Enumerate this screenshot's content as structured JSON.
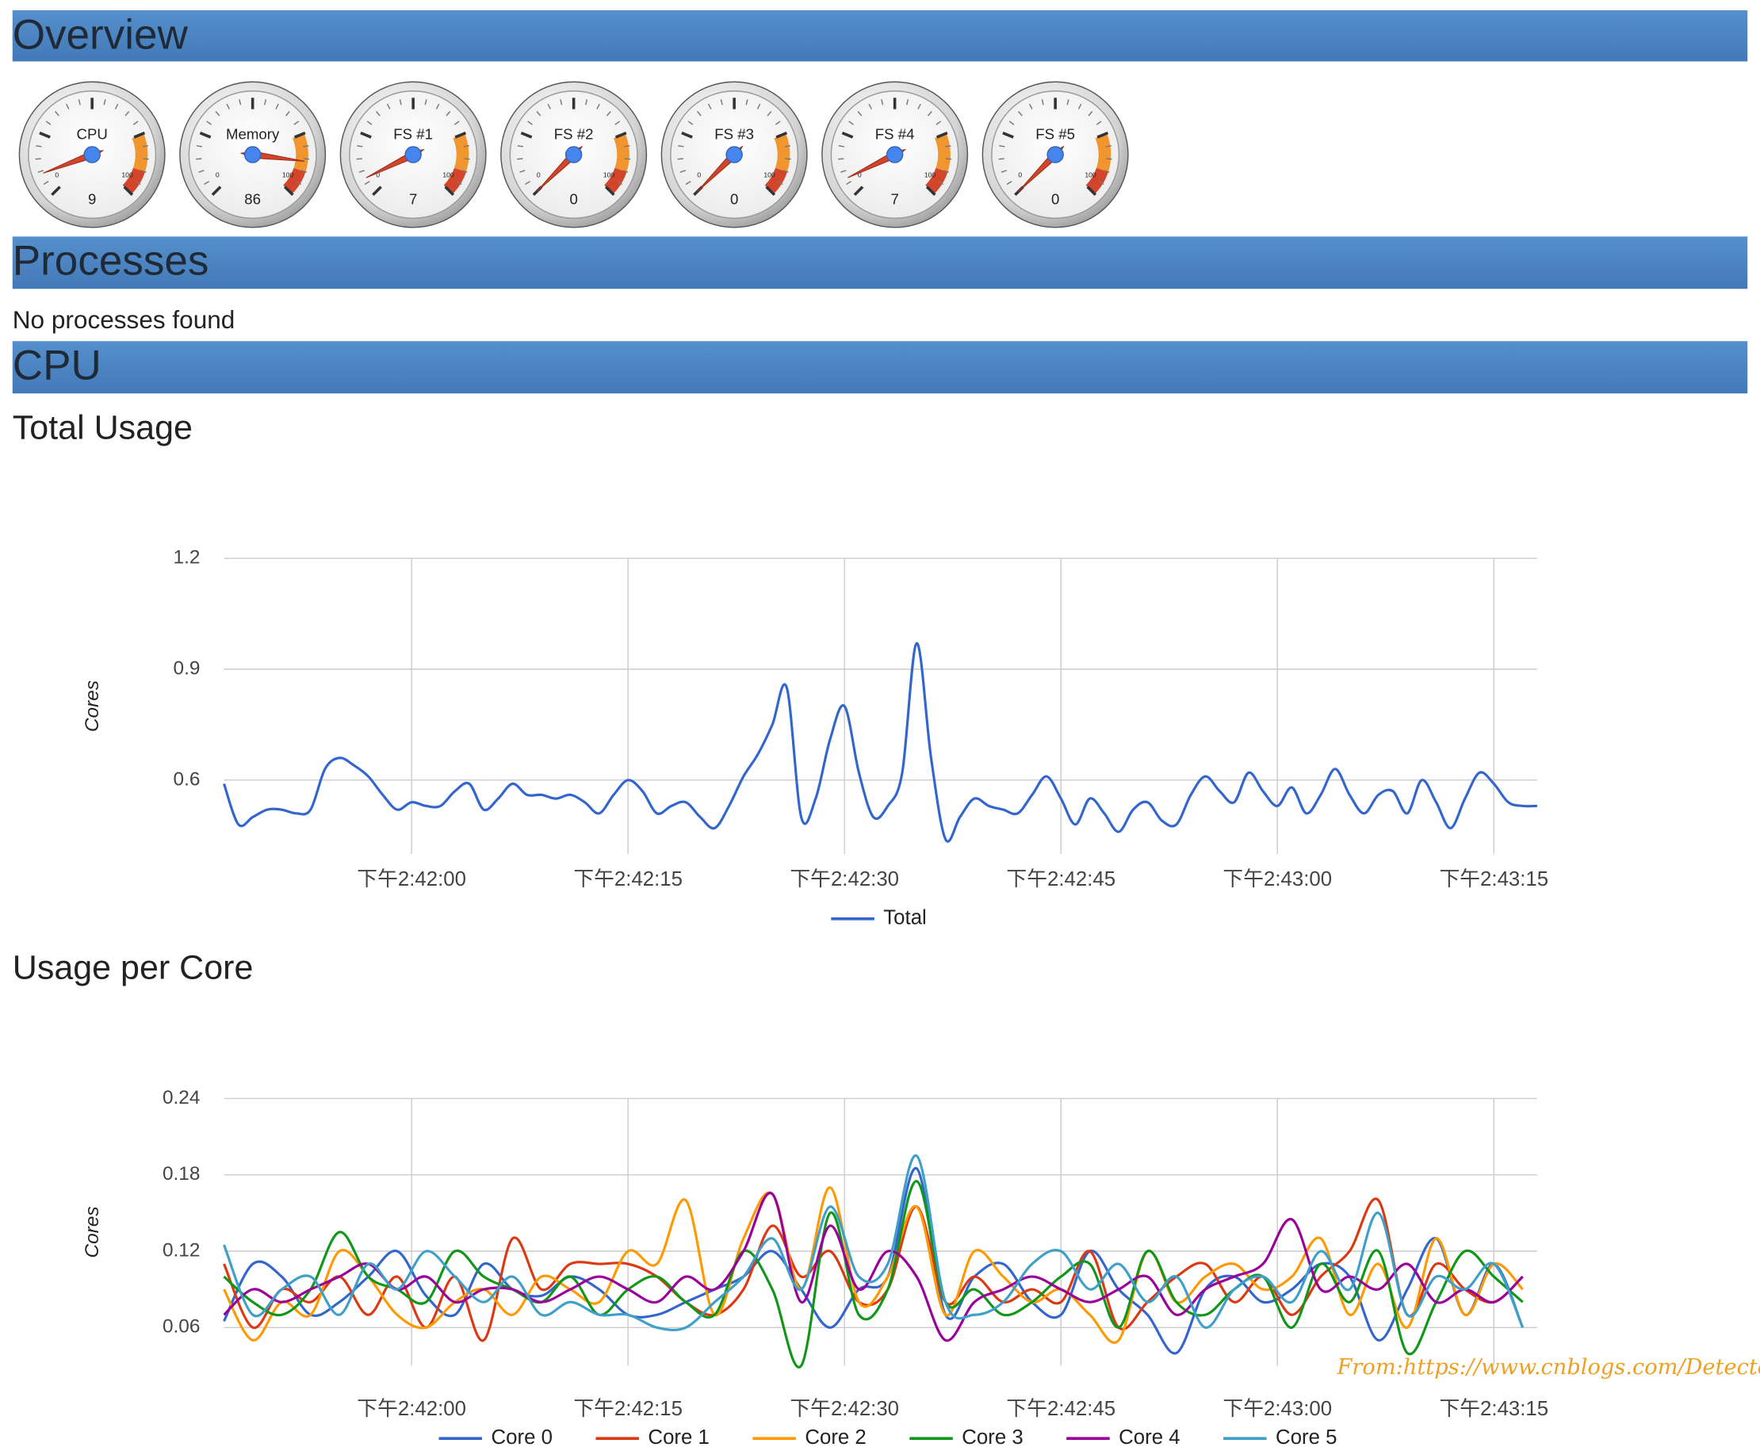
{
  "sections": {
    "overview": "Overview",
    "processes": "Processes",
    "cpu": "CPU"
  },
  "gauge_scale": {
    "min": 0,
    "max": 100
  },
  "gauge_bands": [
    {
      "from": 75,
      "to": 90,
      "color": "#f1962f"
    },
    {
      "from": 90,
      "to": 100,
      "color": "#d2452a"
    }
  ],
  "gauges": [
    {
      "label": "CPU",
      "value": 9
    },
    {
      "label": "Memory",
      "value": 86
    },
    {
      "label": "FS #1",
      "value": 7
    },
    {
      "label": "FS #2",
      "value": 0
    },
    {
      "label": "FS #3",
      "value": 0
    },
    {
      "label": "FS #4",
      "value": 7
    },
    {
      "label": "FS #5",
      "value": 0
    }
  ],
  "processes_text": "No processes found",
  "chart_data": [
    {
      "type": "line",
      "title": "Total Usage",
      "y_label": "Cores",
      "grid": true,
      "legend": "bottom",
      "x": [
        "14:41:47",
        "14:41:48",
        "14:41:49",
        "14:41:50",
        "14:41:51",
        "14:41:52",
        "14:41:53",
        "14:41:54",
        "14:41:55",
        "14:41:56",
        "14:41:57",
        "14:41:58",
        "14:41:59",
        "14:42:00",
        "14:42:01",
        "14:42:02",
        "14:42:03",
        "14:42:04",
        "14:42:05",
        "14:42:06",
        "14:42:07",
        "14:42:08",
        "14:42:09",
        "14:42:10",
        "14:42:11",
        "14:42:12",
        "14:42:13",
        "14:42:14",
        "14:42:15",
        "14:42:16",
        "14:42:17",
        "14:42:18",
        "14:42:19",
        "14:42:20",
        "14:42:21",
        "14:42:22",
        "14:42:23",
        "14:42:24",
        "14:42:25",
        "14:42:26",
        "14:42:27",
        "14:42:28",
        "14:42:29",
        "14:42:30",
        "14:42:31",
        "14:42:32",
        "14:42:33",
        "14:42:34",
        "14:42:35",
        "14:42:36",
        "14:42:37",
        "14:42:38",
        "14:42:39",
        "14:42:40",
        "14:42:41",
        "14:42:42",
        "14:42:43",
        "14:42:44",
        "14:42:45",
        "14:42:46",
        "14:42:47",
        "14:42:48",
        "14:42:49",
        "14:42:50",
        "14:42:51",
        "14:42:52",
        "14:42:53",
        "14:42:54",
        "14:42:55",
        "14:42:56",
        "14:42:57",
        "14:42:58",
        "14:42:59",
        "14:43:00",
        "14:43:01",
        "14:43:02",
        "14:43:03",
        "14:43:04",
        "14:43:05",
        "14:43:06",
        "14:43:07",
        "14:43:08",
        "14:43:09",
        "14:43:10",
        "14:43:11",
        "14:43:12",
        "14:43:13",
        "14:43:14",
        "14:43:15",
        "14:43:16",
        "14:43:17",
        "14:43:18"
      ],
      "series": [
        {
          "name": "Total",
          "color": "#3366cc",
          "values": [
            0.59,
            0.48,
            0.5,
            0.52,
            0.52,
            0.51,
            0.52,
            0.63,
            0.66,
            0.64,
            0.61,
            0.56,
            0.52,
            0.54,
            0.53,
            0.53,
            0.57,
            0.59,
            0.52,
            0.55,
            0.59,
            0.56,
            0.56,
            0.55,
            0.56,
            0.54,
            0.51,
            0.56,
            0.6,
            0.57,
            0.51,
            0.53,
            0.54,
            0.5,
            0.47,
            0.53,
            0.61,
            0.67,
            0.75,
            0.85,
            0.5,
            0.55,
            0.71,
            0.8,
            0.62,
            0.5,
            0.53,
            0.62,
            0.97,
            0.66,
            0.44,
            0.5,
            0.55,
            0.53,
            0.52,
            0.51,
            0.56,
            0.61,
            0.55,
            0.48,
            0.55,
            0.51,
            0.46,
            0.52,
            0.54,
            0.49,
            0.48,
            0.56,
            0.61,
            0.57,
            0.54,
            0.62,
            0.57,
            0.53,
            0.58,
            0.51,
            0.56,
            0.63,
            0.56,
            0.51,
            0.56,
            0.57,
            0.51,
            0.6,
            0.54,
            0.47,
            0.55,
            0.62,
            0.59,
            0.54,
            0.53,
            0.53
          ]
        }
      ],
      "xlim": [
        "14:41:47",
        "14:43:18"
      ],
      "ylim": [
        0.4,
        1.2
      ],
      "yticks": [
        0.6,
        0.9,
        1.2
      ],
      "xticks": [
        {
          "value": "14:42:00",
          "label": "下午2:42:00"
        },
        {
          "value": "14:42:15",
          "label": "下午2:42:15"
        },
        {
          "value": "14:42:30",
          "label": "下午2:42:30"
        },
        {
          "value": "14:42:45",
          "label": "下午2:42:45"
        },
        {
          "value": "14:43:00",
          "label": "下午2:43:00"
        },
        {
          "value": "14:43:15",
          "label": "下午2:43:15"
        }
      ]
    },
    {
      "type": "line",
      "title": "Usage per Core",
      "y_label": "Cores",
      "grid": true,
      "legend": "bottom",
      "x": [
        "14:41:47",
        "14:41:49",
        "14:41:51",
        "14:41:53",
        "14:41:55",
        "14:41:57",
        "14:41:59",
        "14:42:01",
        "14:42:03",
        "14:42:05",
        "14:42:07",
        "14:42:09",
        "14:42:11",
        "14:42:13",
        "14:42:15",
        "14:42:17",
        "14:42:19",
        "14:42:21",
        "14:42:23",
        "14:42:25",
        "14:42:27",
        "14:42:29",
        "14:42:31",
        "14:42:33",
        "14:42:35",
        "14:42:37",
        "14:42:39",
        "14:42:41",
        "14:42:43",
        "14:42:45",
        "14:42:47",
        "14:42:49",
        "14:42:51",
        "14:42:53",
        "14:42:55",
        "14:42:57",
        "14:42:59",
        "14:43:01",
        "14:43:03",
        "14:43:05",
        "14:43:07",
        "14:43:09",
        "14:43:11",
        "14:43:13",
        "14:43:15",
        "14:43:17"
      ],
      "series": [
        {
          "name": "Core 0",
          "color": "#3366cc",
          "values": [
            0.065,
            0.11,
            0.1,
            0.07,
            0.08,
            0.1,
            0.12,
            0.085,
            0.07,
            0.11,
            0.09,
            0.085,
            0.1,
            0.09,
            0.07,
            0.07,
            0.08,
            0.09,
            0.1,
            0.12,
            0.09,
            0.06,
            0.09,
            0.1,
            0.185,
            0.07,
            0.1,
            0.11,
            0.08,
            0.07,
            0.12,
            0.09,
            0.07,
            0.04,
            0.09,
            0.1,
            0.08,
            0.09,
            0.11,
            0.1,
            0.05,
            0.09,
            0.13,
            0.07,
            0.11,
            0.06
          ]
        },
        {
          "name": "Core 1",
          "color": "#dc3912",
          "values": [
            0.11,
            0.06,
            0.09,
            0.08,
            0.1,
            0.07,
            0.1,
            0.06,
            0.1,
            0.05,
            0.13,
            0.09,
            0.11,
            0.11,
            0.11,
            0.1,
            0.08,
            0.07,
            0.09,
            0.14,
            0.1,
            0.12,
            0.08,
            0.09,
            0.155,
            0.08,
            0.1,
            0.08,
            0.09,
            0.08,
            0.12,
            0.06,
            0.08,
            0.1,
            0.11,
            0.08,
            0.1,
            0.07,
            0.1,
            0.12,
            0.16,
            0.07,
            0.11,
            0.09,
            0.08,
            0.1
          ]
        },
        {
          "name": "Core 2",
          "color": "#ff9900",
          "values": [
            0.09,
            0.05,
            0.08,
            0.07,
            0.12,
            0.1,
            0.07,
            0.06,
            0.08,
            0.09,
            0.07,
            0.1,
            0.09,
            0.08,
            0.12,
            0.11,
            0.16,
            0.07,
            0.13,
            0.165,
            0.09,
            0.17,
            0.08,
            0.1,
            0.155,
            0.07,
            0.12,
            0.1,
            0.08,
            0.09,
            0.07,
            0.05,
            0.12,
            0.08,
            0.1,
            0.11,
            0.09,
            0.1,
            0.13,
            0.07,
            0.11,
            0.06,
            0.13,
            0.07,
            0.11,
            0.09
          ]
        },
        {
          "name": "Core 3",
          "color": "#109618",
          "values": [
            0.1,
            0.08,
            0.07,
            0.09,
            0.135,
            0.1,
            0.09,
            0.08,
            0.12,
            0.1,
            0.09,
            0.08,
            0.1,
            0.07,
            0.09,
            0.1,
            0.08,
            0.07,
            0.12,
            0.09,
            0.03,
            0.15,
            0.07,
            0.09,
            0.175,
            0.08,
            0.09,
            0.07,
            0.08,
            0.1,
            0.11,
            0.06,
            0.12,
            0.08,
            0.07,
            0.09,
            0.1,
            0.06,
            0.11,
            0.08,
            0.12,
            0.04,
            0.08,
            0.12,
            0.1,
            0.08
          ]
        },
        {
          "name": "Core 4",
          "color": "#990099",
          "values": [
            0.07,
            0.09,
            0.08,
            0.09,
            0.1,
            0.11,
            0.09,
            0.1,
            0.08,
            0.09,
            0.09,
            0.08,
            0.09,
            0.1,
            0.09,
            0.08,
            0.1,
            0.09,
            0.12,
            0.165,
            0.08,
            0.14,
            0.09,
            0.12,
            0.1,
            0.05,
            0.08,
            0.09,
            0.1,
            0.09,
            0.08,
            0.09,
            0.1,
            0.07,
            0.09,
            0.1,
            0.11,
            0.145,
            0.09,
            0.1,
            0.09,
            0.11,
            0.08,
            0.09,
            0.08,
            0.1
          ]
        },
        {
          "name": "Core 5",
          "color": "#3e9fc9",
          "values": [
            0.125,
            0.07,
            0.09,
            0.1,
            0.07,
            0.11,
            0.09,
            0.12,
            0.1,
            0.08,
            0.1,
            0.07,
            0.08,
            0.07,
            0.07,
            0.06,
            0.06,
            0.08,
            0.1,
            0.13,
            0.09,
            0.155,
            0.1,
            0.11,
            0.195,
            0.08,
            0.07,
            0.08,
            0.11,
            0.12,
            0.09,
            0.11,
            0.08,
            0.1,
            0.06,
            0.09,
            0.1,
            0.08,
            0.12,
            0.09,
            0.15,
            0.07,
            0.1,
            0.09,
            0.11,
            0.06
          ]
        }
      ],
      "xlim": [
        "14:41:47",
        "14:43:18"
      ],
      "ylim": [
        0.03,
        0.24
      ],
      "yticks": [
        0.06,
        0.12,
        0.18,
        0.24
      ],
      "xticks": [
        {
          "value": "14:42:00",
          "label": "下午2:42:00"
        },
        {
          "value": "14:42:15",
          "label": "下午2:42:15"
        },
        {
          "value": "14:42:30",
          "label": "下午2:42:30"
        },
        {
          "value": "14:42:45",
          "label": "下午2:42:45"
        },
        {
          "value": "14:43:00",
          "label": "下午2:43:00"
        },
        {
          "value": "14:43:15",
          "label": "下午2:43:15"
        }
      ]
    }
  ],
  "watermark": "From:https://www.cnblogs.com/Detector/"
}
